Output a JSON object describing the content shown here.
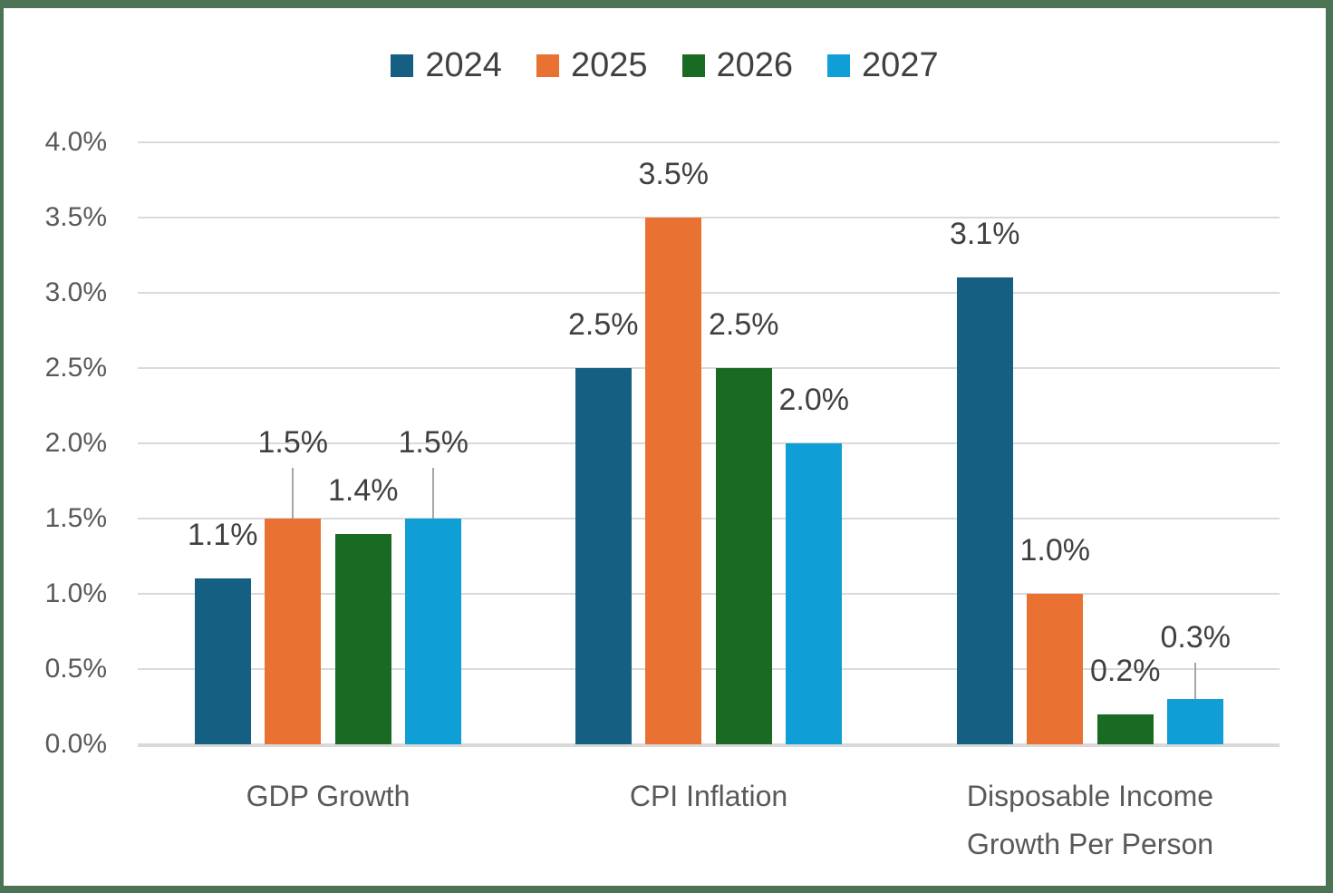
{
  "chart_data": {
    "type": "bar",
    "title": "",
    "categories": [
      "GDP Growth",
      "CPI Inflation",
      "Disposable Income\nGrowth Per Person"
    ],
    "series": [
      {
        "name": "2024",
        "color": "#156082",
        "values": [
          1.1,
          2.5,
          3.1
        ],
        "data_labels": [
          "1.1%",
          "2.5%",
          "3.1%"
        ],
        "raised_labels": [
          false,
          false,
          false
        ]
      },
      {
        "name": "2025",
        "color": "#E97132",
        "values": [
          1.5,
          3.5,
          1.0
        ],
        "data_labels": [
          "1.5%",
          "3.5%",
          "1.0%"
        ],
        "raised_labels": [
          true,
          false,
          false
        ]
      },
      {
        "name": "2026",
        "color": "#196B24",
        "values": [
          1.4,
          2.5,
          0.2
        ],
        "data_labels": [
          "1.4%",
          "2.5%",
          "0.2%"
        ],
        "raised_labels": [
          false,
          false,
          false
        ]
      },
      {
        "name": "2027",
        "color": "#0F9ED5",
        "values": [
          1.5,
          2.0,
          0.3
        ],
        "data_labels": [
          "1.5%",
          "2.0%",
          "0.3%"
        ],
        "raised_labels": [
          true,
          false,
          true
        ]
      }
    ],
    "y_axis": {
      "min": 0,
      "max": 4,
      "step": 0.5,
      "unit": "%",
      "tick_labels": [
        "0.0%",
        "0.5%",
        "1.0%",
        "1.5%",
        "2.0%",
        "2.5%",
        "3.0%",
        "3.5%",
        "4.0%"
      ]
    },
    "legend": {
      "position": "top",
      "entries": [
        "2024",
        "2025",
        "2026",
        "2027"
      ]
    },
    "grid": true
  },
  "colors": {
    "frame_border": "#4D7355",
    "background": "#FFFFFF",
    "gridline": "#DADADA",
    "axis_line": "#D9D9D9",
    "data_label_text": "#404040",
    "axis_text": "#595959",
    "legend_text": "#404040",
    "leader_line": "#A6A6A6"
  }
}
